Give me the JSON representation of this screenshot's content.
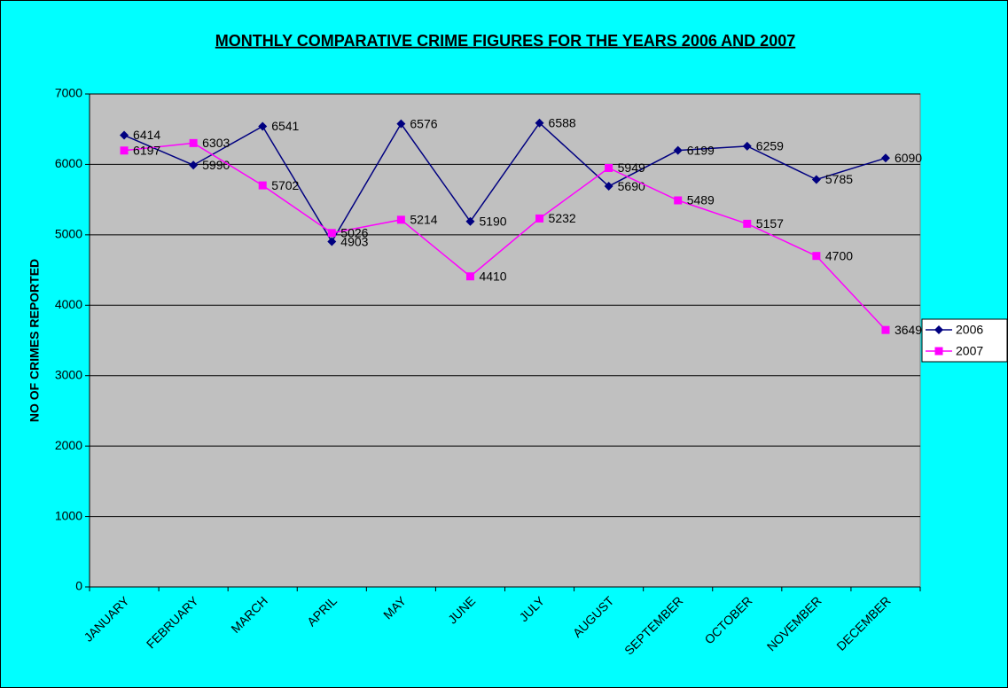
{
  "chart_data": {
    "type": "line",
    "title": "MONTHLY COMPARATIVE CRIME FIGURES FOR THE YEARS 2006 AND 2007",
    "y_label": "NO OF CRIMES REPORTED",
    "categories": [
      "JANUARY",
      "FEBRUARY",
      "MARCH",
      "APRIL",
      "MAY",
      "JUNE",
      "JULY",
      "AUGUST",
      "SEPTEMBER",
      "OCTOBER",
      "NOVEMBER",
      "DECEMBER"
    ],
    "series": [
      {
        "name": "2006",
        "color": "#000080",
        "marker": "diamond",
        "values": [
          6414,
          5990,
          6541,
          4903,
          6576,
          5190,
          6588,
          5690,
          6199,
          6259,
          5785,
          6090
        ]
      },
      {
        "name": "2007",
        "color": "#ff00ff",
        "marker": "square",
        "values": [
          6197,
          6303,
          5702,
          5026,
          5214,
          4410,
          5232,
          5949,
          5489,
          5157,
          4700,
          3649
        ]
      }
    ],
    "ylim": [
      0,
      7000
    ],
    "yticks": [
      0,
      1000,
      2000,
      3000,
      4000,
      5000,
      6000,
      7000
    ],
    "grid": true,
    "legend": "right"
  }
}
